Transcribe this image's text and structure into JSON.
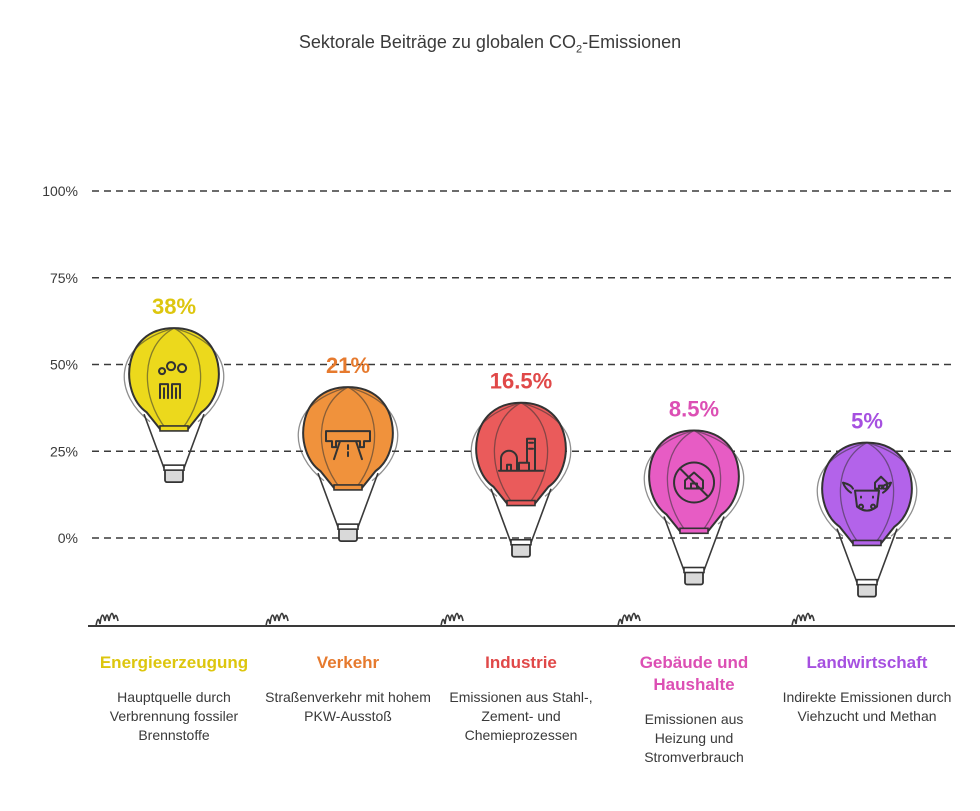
{
  "chart_data": {
    "type": "bar",
    "title_main": "Sektorale Beiträge zu globalen CO",
    "title_sub": "2",
    "title_tail": "-Emissionen",
    "yticks": [
      "100%",
      "75%",
      "50%",
      "25%",
      "0%"
    ],
    "ylim": [
      0,
      100
    ],
    "grid": true,
    "categories": [
      "Energieerzeugung",
      "Verkehr",
      "Industrie",
      "Gebäude und Haushalte",
      "Landwirtschaft"
    ],
    "values": [
      38,
      21,
      16.5,
      8.5,
      5
    ],
    "value_labels": [
      "38%",
      "21%",
      "16.5%",
      "8.5%",
      "5%"
    ],
    "descriptions": [
      "Hauptquelle durch Verbrennung fossiler Brennstoffe",
      "Straßenverkehr mit hohem PKW-Ausstoß",
      "Emissionen aus Stahl-, Zement- und Chemieprozessen",
      "Emissionen aus Heizung und Stromverbrauch",
      "Indirekte Emissionen durch Viehzucht und Methan"
    ],
    "colors": [
      "#ecd91c",
      "#f0923c",
      "#ea5b5b",
      "#e75cc4",
      "#b363ea"
    ],
    "label_colors": [
      "#ddc60e",
      "#e67a2e",
      "#e04848",
      "#dc4fb4",
      "#a650e0"
    ],
    "icons": [
      "factory-icon",
      "road-icon",
      "industry-icon",
      "house-globe-icon",
      "cow-icon"
    ]
  }
}
